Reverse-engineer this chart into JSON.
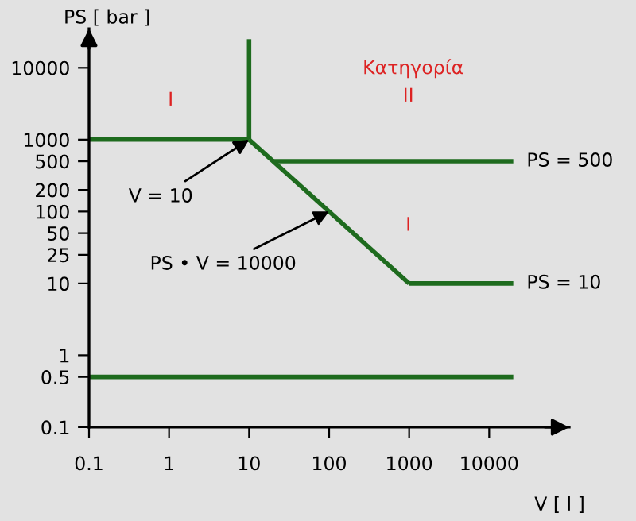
{
  "chart_data": {
    "type": "line",
    "xlabel": "V [ l ]",
    "ylabel": "PS [ bar ]",
    "log": "xy",
    "xlim": [
      0.1,
      100000
    ],
    "ylim": [
      0.1,
      35000
    ],
    "xticks": [
      0.1,
      1,
      10,
      100,
      1000,
      10000
    ],
    "yticks": [
      0.1,
      0.5,
      1,
      10,
      25,
      50,
      100,
      200,
      500,
      1000,
      10000
    ],
    "grid": false,
    "legend": false,
    "marker": "none",
    "line_style": "solid",
    "series": [
      {
        "color": "#1e6b1e",
        "x": [
          0.1,
          10
        ],
        "values": [
          1000,
          1000
        ]
      },
      {
        "color": "#1e6b1e",
        "x": [
          10,
          10
        ],
        "values": [
          1000,
          25000
        ]
      },
      {
        "color": "#1e6b1e",
        "x": [
          10,
          1000
        ],
        "values": [
          1000,
          10
        ]
      },
      {
        "name": "PS = 500",
        "color": "#1e6b1e",
        "x": [
          20,
          20000
        ],
        "values": [
          500,
          500
        ]
      },
      {
        "name": "PS = 10",
        "color": "#1e6b1e",
        "x": [
          1000,
          20000
        ],
        "values": [
          10,
          10
        ]
      },
      {
        "color": "#1e6b1e",
        "x": [
          0.1,
          20000
        ],
        "values": [
          0.5,
          0.5
        ]
      }
    ],
    "annotations": [
      "I",
      "Κατηγορία",
      "II",
      "I",
      {
        "text": "V = 10",
        "x": 10,
        "y": 1000
      },
      {
        "text": "PS • V = 10000",
        "x": 100,
        "y": 100
      }
    ]
  }
}
